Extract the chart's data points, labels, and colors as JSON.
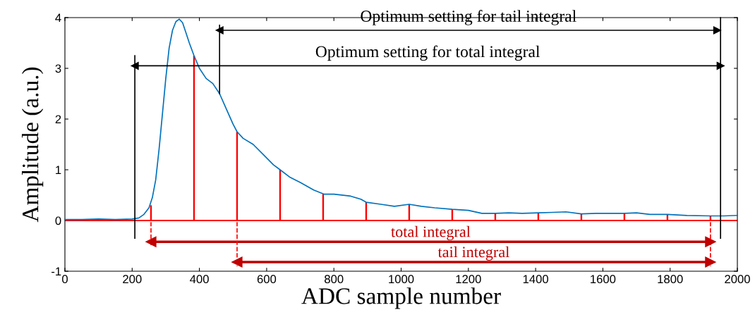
{
  "chart_data": {
    "type": "line",
    "xlabel": "ADC sample number",
    "ylabel": "Amplitude (a.u.)",
    "xlim": [
      0,
      2000
    ],
    "ylim": [
      -1,
      4
    ],
    "xticks": [
      0,
      200,
      400,
      600,
      800,
      1000,
      1200,
      1400,
      1600,
      1800,
      2000
    ],
    "yticks": [
      -1,
      0,
      1,
      2,
      3,
      4
    ],
    "grid": false,
    "legend": false,
    "marker": "none",
    "line_style": "solid",
    "series": [
      {
        "color": "#0072bd",
        "x": [
          0,
          50,
          100,
          150,
          200,
          220,
          235,
          250,
          260,
          270,
          280,
          290,
          300,
          310,
          320,
          330,
          340,
          350,
          360,
          370,
          384,
          400,
          420,
          440,
          460,
          480,
          500,
          512,
          530,
          560,
          590,
          620,
          640,
          670,
          700,
          740,
          770,
          800,
          850,
          880,
          896,
          940,
          980,
          1024,
          1060,
          1100,
          1152,
          1200,
          1240,
          1280,
          1320,
          1360,
          1408,
          1450,
          1490,
          1536,
          1580,
          1620,
          1664,
          1700,
          1740,
          1792,
          1850,
          1920,
          1960,
          2000
        ],
        "values": [
          0.02,
          0.02,
          0.03,
          0.02,
          0.03,
          0.05,
          0.12,
          0.25,
          0.45,
          0.8,
          1.4,
          2.1,
          2.8,
          3.4,
          3.75,
          3.92,
          3.97,
          3.9,
          3.7,
          3.5,
          3.25,
          3.0,
          2.8,
          2.7,
          2.5,
          2.2,
          1.9,
          1.75,
          1.62,
          1.5,
          1.3,
          1.1,
          1.0,
          0.85,
          0.75,
          0.6,
          0.52,
          0.52,
          0.48,
          0.42,
          0.36,
          0.32,
          0.28,
          0.32,
          0.28,
          0.25,
          0.22,
          0.2,
          0.14,
          0.14,
          0.15,
          0.14,
          0.15,
          0.16,
          0.17,
          0.13,
          0.14,
          0.14,
          0.14,
          0.15,
          0.12,
          0.12,
          0.1,
          0.09,
          0.09,
          0.1
        ]
      },
      {
        "type": "bar",
        "color": "#ff0000",
        "x": [
          256,
          384,
          512,
          640,
          768,
          896,
          1024,
          1152,
          1280,
          1408,
          1536,
          1664,
          1792,
          1920
        ],
        "values": [
          0.3,
          3.25,
          1.75,
          1.0,
          0.52,
          0.36,
          0.32,
          0.22,
          0.14,
          0.15,
          0.13,
          0.14,
          0.12,
          0.09
        ]
      },
      {
        "type": "line",
        "color": "#000000",
        "marker": "triangle",
        "x": [
          460,
          1940
        ],
        "values": [
          3.75,
          3.75
        ]
      },
      {
        "type": "line",
        "color": "#000000",
        "marker": "triangle",
        "x": [
          208,
          1950
        ],
        "values": [
          3.05,
          3.05
        ]
      },
      {
        "type": "line",
        "color": "#c00000",
        "marker": "triangle",
        "x": [
          256,
          1920
        ],
        "values": [
          -0.42,
          -0.42
        ]
      },
      {
        "type": "line",
        "color": "#c00000",
        "marker": "triangle",
        "x": [
          512,
          1920
        ],
        "values": [
          -0.82,
          -0.82
        ]
      },
      {
        "type": "line",
        "color": "#000000",
        "x": [
          208,
          208
        ],
        "values": [
          -0.35,
          3.25
        ]
      },
      {
        "type": "line",
        "color": "#000000",
        "x": [
          460,
          460
        ],
        "values": [
          2.5,
          3.85
        ]
      },
      {
        "type": "line",
        "color": "#000000",
        "x": [
          1950,
          1950
        ],
        "values": [
          -0.35,
          4
        ]
      },
      {
        "type": "line",
        "color": "#ff0000",
        "line_style": "dashed",
        "x": [
          256,
          256
        ],
        "values": [
          -0.03,
          -0.5
        ]
      },
      {
        "type": "line",
        "color": "#ff0000",
        "line_style": "dashed",
        "x": [
          512,
          512
        ],
        "values": [
          -0.03,
          -0.9
        ]
      },
      {
        "type": "line",
        "color": "#ff0000",
        "line_style": "dashed",
        "x": [
          1920,
          1920
        ],
        "values": [
          -0.03,
          -0.9
        ]
      }
    ],
    "ref_lines": [
      {
        "axis": "y",
        "value": 0,
        "color": "#ff0000",
        "line_style": "solid"
      }
    ],
    "annotations": [
      {
        "text": "Optimum setting for tail integral",
        "x": 1200,
        "y": 3.75
      },
      {
        "text": "Optimum setting for total integral",
        "x": 1079,
        "y": 3.05
      },
      {
        "text": "total integral",
        "x": 1088,
        "y": -0.42
      },
      {
        "text": "tail integral",
        "x": 1216,
        "y": -0.82
      }
    ]
  }
}
